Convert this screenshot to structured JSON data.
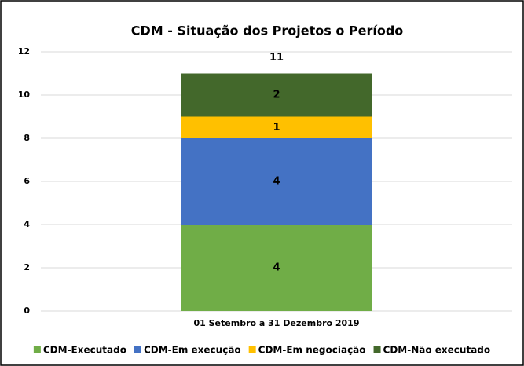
{
  "chart_data": {
    "type": "stacked_bar",
    "title": "CDM - Situação dos Projetos o Período",
    "categories": [
      "01 Setembro a 31 Dezembro 2019"
    ],
    "series": [
      {
        "name": "CDM-Executado",
        "color": "#70ad47",
        "values": [
          4
        ]
      },
      {
        "name": "CDM-Em execução",
        "color": "#4472c4",
        "values": [
          4
        ]
      },
      {
        "name": "CDM-Em negociação",
        "color": "#ffc000",
        "values": [
          1
        ]
      },
      {
        "name": "CDM-Não executado",
        "color": "#43682b",
        "values": [
          2
        ]
      }
    ],
    "totals": [
      11
    ],
    "ylim": [
      0,
      12
    ],
    "yticks": [
      0,
      2,
      4,
      6,
      8,
      10,
      12
    ],
    "grid": true,
    "legend": "bottom"
  }
}
